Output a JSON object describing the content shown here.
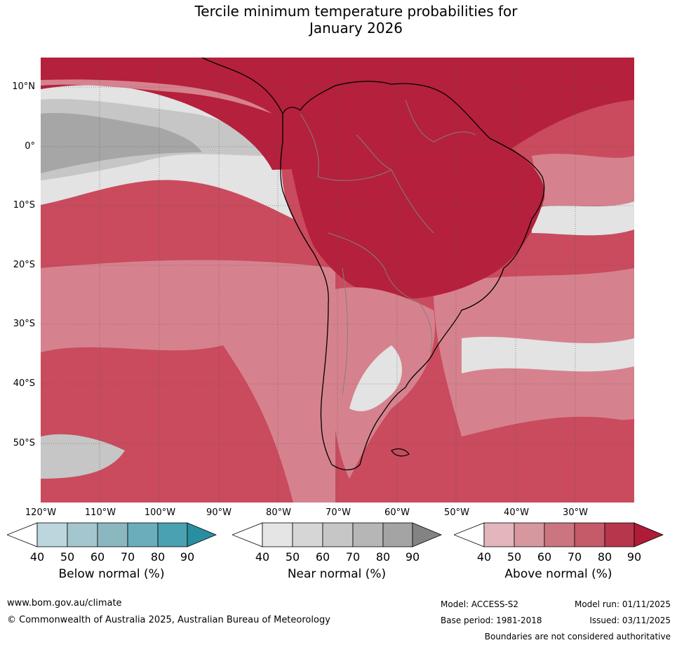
{
  "title": {
    "line1": "Tercile minimum temperature probabilities for",
    "line2": "January 2026"
  },
  "map": {
    "latitude_labels": [
      "10°N",
      "0°",
      "10°S",
      "20°S",
      "30°S",
      "40°S",
      "50°S"
    ],
    "longitude_labels": [
      "120°W",
      "110°W",
      "100°W",
      "90°W",
      "80°W",
      "70°W",
      "60°W",
      "50°W",
      "40°W",
      "30°W"
    ],
    "colors": {
      "above_dark": "#b5203c",
      "above_mid": "#c94b5d",
      "above_light": "#d6828e",
      "near_light": "#e3e3e3",
      "near_mid": "#c6c6c6",
      "near_dark": "#a6a6a6",
      "coast": "#000000",
      "border": "#808080"
    }
  },
  "legends": [
    {
      "label": "Below normal (%)",
      "ticks": [
        "40",
        "50",
        "60",
        "70",
        "80",
        "90"
      ],
      "colors": [
        "#ffffff",
        "#bcd6dd",
        "#a4c6ce",
        "#8bb7c0",
        "#6cadbc",
        "#49a1b2",
        "#2a8ea1"
      ]
    },
    {
      "label": "Near normal (%)",
      "ticks": [
        "40",
        "50",
        "60",
        "70",
        "80",
        "90"
      ],
      "colors": [
        "#ffffff",
        "#e5e5e5",
        "#d6d6d6",
        "#c6c6c6",
        "#b6b6b6",
        "#a4a4a4",
        "#838383"
      ]
    },
    {
      "label": "Above normal (%)",
      "ticks": [
        "40",
        "50",
        "60",
        "70",
        "80",
        "90"
      ],
      "colors": [
        "#ffffff",
        "#e2b6bc",
        "#d6979f",
        "#cb7580",
        "#c55a69",
        "#b8364b",
        "#ae1c37"
      ]
    }
  ],
  "footer": {
    "url": "www.bom.gov.au/climate",
    "copyright": "© Commonwealth of Australia 2025, Australian Bureau of Meteorology",
    "model": "Model: ACCESS-S2",
    "model_run": "Model run: 01/11/2025",
    "base_period": "Base period: 1981-2018",
    "issued": "Issued: 03/11/2025",
    "disclaimer": "Boundaries are not considered authoritative"
  }
}
